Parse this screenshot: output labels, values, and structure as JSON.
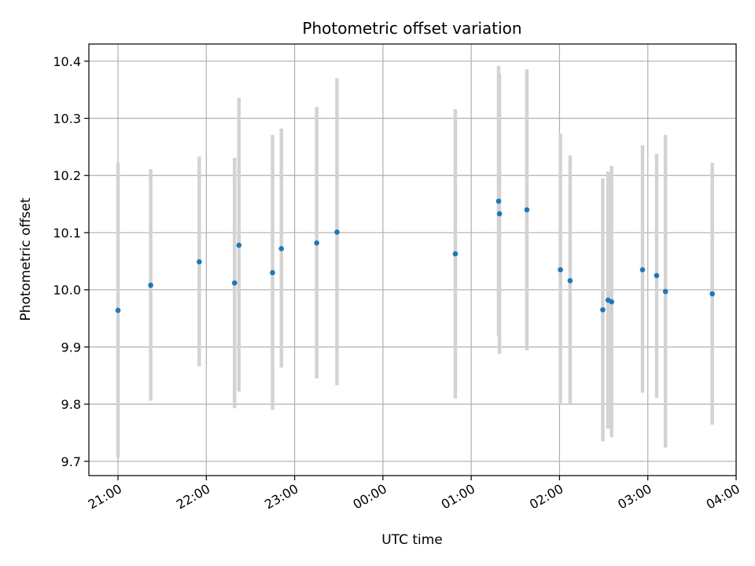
{
  "chart_data": {
    "type": "scatter",
    "title": "Photometric offset variation",
    "xlabel": "UTC time",
    "ylabel": "Photometric offset",
    "x_unit": "hours (UTC, 21:00 start, wraps past midnight)",
    "xlim": [
      20.67,
      28.0
    ],
    "ylim": [
      9.675,
      10.43
    ],
    "grid": true,
    "x_ticks": [
      {
        "value": 21,
        "label": "21:00"
      },
      {
        "value": 22,
        "label": "22:00"
      },
      {
        "value": 23,
        "label": "23:00"
      },
      {
        "value": 24,
        "label": "00:00"
      },
      {
        "value": 25,
        "label": "01:00"
      },
      {
        "value": 26,
        "label": "02:00"
      },
      {
        "value": 27,
        "label": "03:00"
      },
      {
        "value": 28,
        "label": "04:00"
      }
    ],
    "y_ticks": [
      {
        "value": 9.7,
        "label": "9.7"
      },
      {
        "value": 9.8,
        "label": "9.8"
      },
      {
        "value": 9.9,
        "label": "9.9"
      },
      {
        "value": 10.0,
        "label": "10.0"
      },
      {
        "value": 10.1,
        "label": "10.1"
      },
      {
        "value": 10.2,
        "label": "10.2"
      },
      {
        "value": 10.3,
        "label": "10.3"
      },
      {
        "value": 10.4,
        "label": "10.4"
      }
    ],
    "point_color": "#1f77b4",
    "errorbar_color": "#d3d3d3",
    "points": [
      {
        "x": 21.0,
        "y": 9.964,
        "err_low": 9.706,
        "err_high": 10.222
      },
      {
        "x": 21.37,
        "y": 10.008,
        "err_low": 9.806,
        "err_high": 10.211
      },
      {
        "x": 21.92,
        "y": 10.049,
        "err_low": 9.866,
        "err_high": 10.233
      },
      {
        "x": 22.32,
        "y": 10.012,
        "err_low": 9.793,
        "err_high": 10.231
      },
      {
        "x": 22.37,
        "y": 10.078,
        "err_low": 9.822,
        "err_high": 10.336
      },
      {
        "x": 22.75,
        "y": 10.03,
        "err_low": 9.79,
        "err_high": 10.271
      },
      {
        "x": 22.85,
        "y": 10.072,
        "err_low": 9.864,
        "err_high": 10.282
      },
      {
        "x": 23.25,
        "y": 10.082,
        "err_low": 9.845,
        "err_high": 10.32
      },
      {
        "x": 23.48,
        "y": 10.101,
        "err_low": 9.833,
        "err_high": 10.37
      },
      {
        "x": 24.82,
        "y": 10.063,
        "err_low": 9.81,
        "err_high": 10.316
      },
      {
        "x": 25.31,
        "y": 10.155,
        "err_low": 9.918,
        "err_high": 10.392
      },
      {
        "x": 25.32,
        "y": 10.133,
        "err_low": 9.888,
        "err_high": 10.378
      },
      {
        "x": 25.63,
        "y": 10.14,
        "err_low": 9.894,
        "err_high": 10.386
      },
      {
        "x": 26.01,
        "y": 10.035,
        "err_low": 9.8,
        "err_high": 10.273
      },
      {
        "x": 26.12,
        "y": 10.016,
        "err_low": 9.8,
        "err_high": 10.235
      },
      {
        "x": 26.49,
        "y": 9.965,
        "err_low": 9.735,
        "err_high": 10.195
      },
      {
        "x": 26.55,
        "y": 9.982,
        "err_low": 9.757,
        "err_high": 10.207
      },
      {
        "x": 26.59,
        "y": 9.979,
        "err_low": 9.742,
        "err_high": 10.217
      },
      {
        "x": 26.94,
        "y": 10.035,
        "err_low": 9.82,
        "err_high": 10.253
      },
      {
        "x": 27.1,
        "y": 10.025,
        "err_low": 9.811,
        "err_high": 10.238
      },
      {
        "x": 27.2,
        "y": 9.997,
        "err_low": 9.724,
        "err_high": 10.271
      },
      {
        "x": 27.73,
        "y": 9.993,
        "err_low": 9.764,
        "err_high": 10.222
      }
    ]
  }
}
